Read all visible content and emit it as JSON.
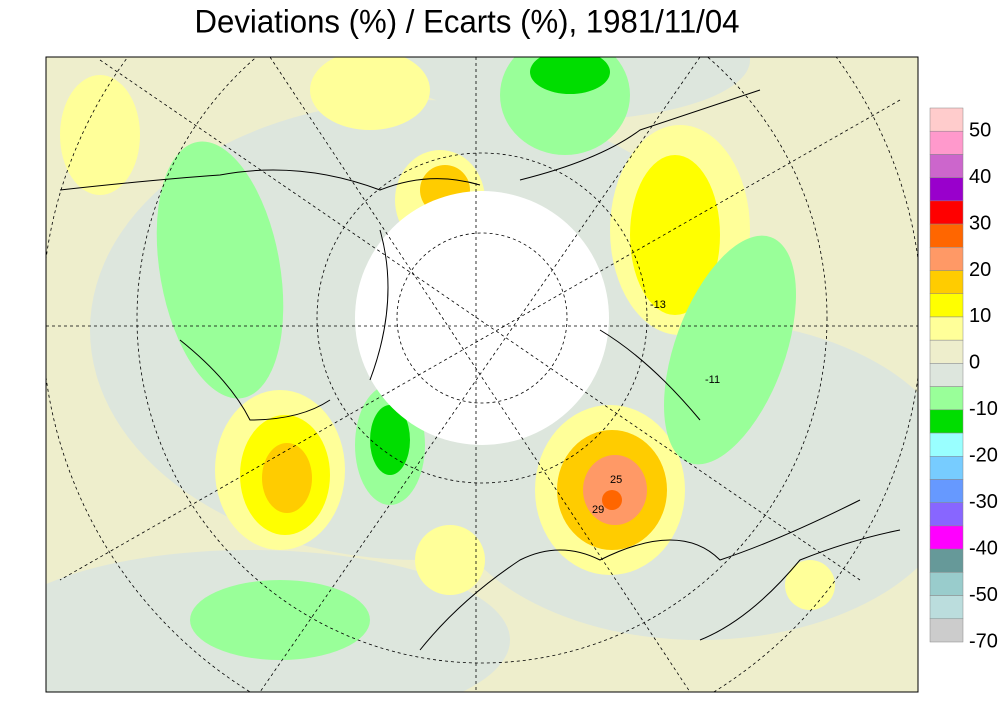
{
  "title": "Deviations (%) / Ecarts (%), 1981/11/04",
  "legend": {
    "colors": [
      "#ffcccc",
      "#ff99cc",
      "#cc66cc",
      "#9900cc",
      "#ff0000",
      "#ff6600",
      "#ff9966",
      "#ffcc00",
      "#ffff00",
      "#ffff99",
      "#eeeecc",
      "#dde6dd",
      "#99ff99",
      "#00dd00",
      "#99ffff",
      "#77ccff",
      "#6699ff",
      "#8866ff",
      "#ff00ff",
      "#669999",
      "#99cccc",
      "#bbdddd",
      "#cccccc"
    ],
    "levels": [
      50,
      40,
      30,
      20,
      10,
      0,
      -10,
      -20,
      -30,
      -40,
      -50,
      -70
    ]
  },
  "contour_labels": [
    "29",
    "25",
    "-13",
    "-11"
  ]
}
